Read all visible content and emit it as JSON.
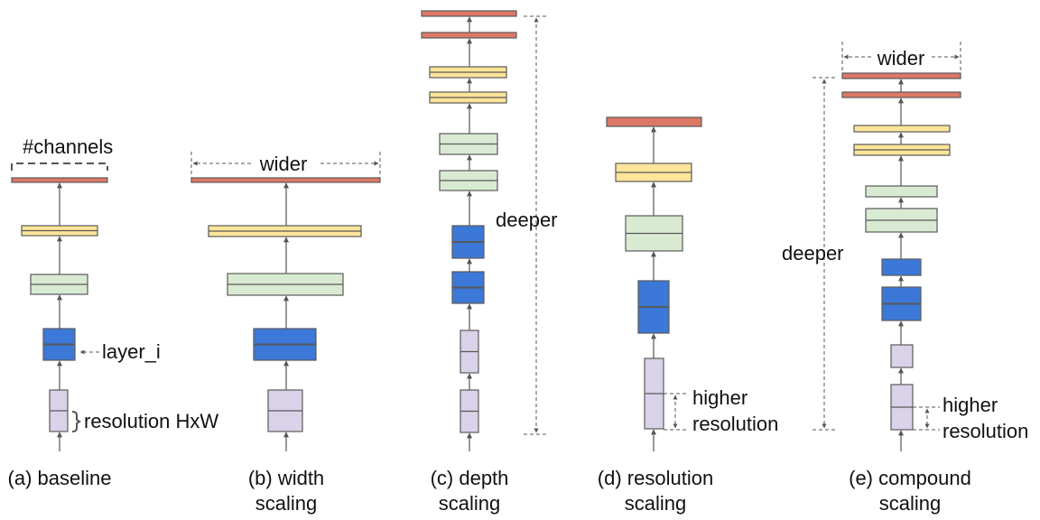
{
  "colors": {
    "stage_red": "#dd7766",
    "stage_yellow": "#ffe599",
    "stage_green": "#d9ead3",
    "stage_blue": "#3c78d8",
    "stage_purple": "#d9d2e9",
    "outline": "#595959"
  },
  "panels": [
    {
      "caption": [
        "(a) baseline"
      ],
      "annotations": {
        "channels": "#channels",
        "layer": "layer_i",
        "resolution": "resolution HxW"
      }
    },
    {
      "caption": [
        "(b) width",
        "scaling"
      ],
      "annotations": {
        "wider": "wider"
      }
    },
    {
      "caption": [
        "(c) depth",
        "scaling"
      ],
      "annotations": {
        "deeper": "deeper"
      }
    },
    {
      "caption": [
        "(d) resolution",
        "scaling"
      ],
      "annotations": {
        "higher": "higher",
        "resolution": "resolution"
      }
    },
    {
      "caption": [
        "(e) compound",
        "scaling"
      ],
      "annotations": {
        "wider": "wider",
        "deeper": "deeper",
        "higher": "higher",
        "resolution": "resolution"
      }
    }
  ]
}
